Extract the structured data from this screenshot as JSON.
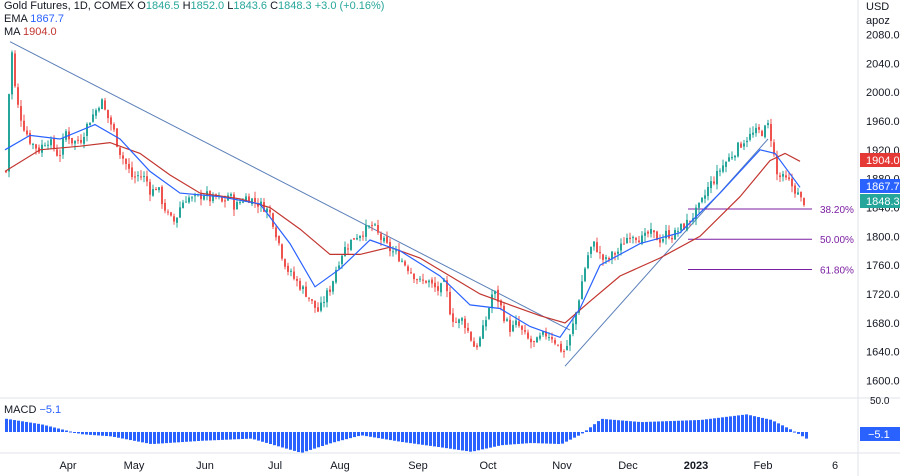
{
  "legend": {
    "title": "Gold Futures, 1D, COMEX",
    "o_label": "O",
    "o": "1846.5",
    "h_label": "H",
    "h": "1852.0",
    "l_label": "L",
    "l": "1843.6",
    "c_label": "C",
    "c": "1848.3",
    "change": "+3.0 (+0.16%)",
    "ema_label": "EMA",
    "ema_value": "1867.7",
    "ma_label": "MA",
    "ma_value": "1904.0"
  },
  "axis_unit": [
    "USD",
    "apoz"
  ],
  "macd": {
    "label": "MACD",
    "value": "−5.1",
    "tag": "−5.1",
    "axis_top": "50.0"
  },
  "colors": {
    "up": "#26a69a",
    "down": "#ef5350",
    "ema": "#2962ff",
    "ma": "#c2352f",
    "fib": "#7b1fa2",
    "trend": "#5b7fb8",
    "macd": "#2962ff"
  },
  "chart_data": {
    "type": "candlestick",
    "ylim": [
      1580,
      2100
    ],
    "y_ticks": [
      "1600.0",
      "1640.0",
      "1680.0",
      "1720.0",
      "1760.0",
      "1800.0",
      "1840.0",
      "1880.0",
      "1920.0",
      "1960.0",
      "2000.0",
      "2040.0",
      "2080.0"
    ],
    "x_labels": [
      "Apr",
      "May",
      "Jun",
      "Jul",
      "Aug",
      "Sep",
      "Oct",
      "Nov",
      "Dec",
      "2023",
      "Feb",
      "6"
    ],
    "price_tags": [
      {
        "name": "ma",
        "text": "1904.0",
        "value": 1904.0,
        "color": "#e53935"
      },
      {
        "name": "ema",
        "text": "1867.7",
        "value": 1867.7,
        "color": "#2962ff"
      },
      {
        "name": "close",
        "text": "1848.3",
        "value": 1848.3,
        "color": "#26a69a"
      }
    ],
    "fibonacci": [
      {
        "label": "38.20%",
        "value": 1838
      },
      {
        "label": "50.00%",
        "value": 1796
      },
      {
        "label": "61.80%",
        "value": 1754
      }
    ],
    "series": [
      {
        "name": "price",
        "points": [
          [
            5,
            1890
          ],
          [
            10,
            2070
          ],
          [
            15,
            1990
          ],
          [
            22,
            1955
          ],
          [
            30,
            1930
          ],
          [
            38,
            1920
          ],
          [
            46,
            1935
          ],
          [
            52,
            1925
          ],
          [
            58,
            1910
          ],
          [
            65,
            1945
          ],
          [
            72,
            1930
          ],
          [
            80,
            1935
          ],
          [
            88,
            1960
          ],
          [
            95,
            1975
          ],
          [
            100,
            1990
          ],
          [
            105,
            1970
          ],
          [
            112,
            1950
          ],
          [
            118,
            1920
          ],
          [
            125,
            1900
          ],
          [
            132,
            1880
          ],
          [
            138,
            1885
          ],
          [
            145,
            1880
          ],
          [
            150,
            1860
          ],
          [
            156,
            1870
          ],
          [
            162,
            1845
          ],
          [
            168,
            1825
          ],
          [
            174,
            1820
          ],
          [
            180,
            1845
          ],
          [
            186,
            1855
          ],
          [
            192,
            1850
          ],
          [
            198,
            1855
          ],
          [
            204,
            1860
          ],
          [
            210,
            1850
          ],
          [
            216,
            1855
          ],
          [
            222,
            1845
          ],
          [
            228,
            1860
          ],
          [
            234,
            1840
          ],
          [
            240,
            1850
          ],
          [
            246,
            1855
          ],
          [
            252,
            1850
          ],
          [
            258,
            1845
          ],
          [
            264,
            1840
          ],
          [
            270,
            1830
          ],
          [
            276,
            1800
          ],
          [
            282,
            1770
          ],
          [
            288,
            1750
          ],
          [
            294,
            1740
          ],
          [
            300,
            1730
          ],
          [
            306,
            1720
          ],
          [
            312,
            1705
          ],
          [
            318,
            1695
          ],
          [
            324,
            1715
          ],
          [
            330,
            1730
          ],
          [
            336,
            1760
          ],
          [
            342,
            1780
          ],
          [
            348,
            1790
          ],
          [
            354,
            1800
          ],
          [
            360,
            1805
          ],
          [
            366,
            1810
          ],
          [
            372,
            1815
          ],
          [
            378,
            1800
          ],
          [
            384,
            1790
          ],
          [
            390,
            1780
          ],
          [
            396,
            1775
          ],
          [
            402,
            1765
          ],
          [
            408,
            1755
          ],
          [
            414,
            1745
          ],
          [
            420,
            1735
          ],
          [
            426,
            1740
          ],
          [
            432,
            1730
          ],
          [
            438,
            1725
          ],
          [
            444,
            1735
          ],
          [
            450,
            1690
          ],
          [
            456,
            1680
          ],
          [
            462,
            1685
          ],
          [
            468,
            1665
          ],
          [
            474,
            1645
          ],
          [
            480,
            1660
          ],
          [
            486,
            1690
          ],
          [
            492,
            1725
          ],
          [
            498,
            1710
          ],
          [
            504,
            1685
          ],
          [
            510,
            1670
          ],
          [
            516,
            1680
          ],
          [
            522,
            1665
          ],
          [
            528,
            1655
          ],
          [
            534,
            1650
          ],
          [
            540,
            1660
          ],
          [
            546,
            1665
          ],
          [
            552,
            1660
          ],
          [
            558,
            1645
          ],
          [
            564,
            1640
          ],
          [
            570,
            1665
          ],
          [
            576,
            1700
          ],
          [
            582,
            1745
          ],
          [
            588,
            1780
          ],
          [
            594,
            1790
          ],
          [
            600,
            1770
          ],
          [
            606,
            1765
          ],
          [
            612,
            1775
          ],
          [
            618,
            1780
          ],
          [
            624,
            1795
          ],
          [
            630,
            1805
          ],
          [
            636,
            1800
          ],
          [
            642,
            1795
          ],
          [
            648,
            1805
          ],
          [
            654,
            1800
          ],
          [
            660,
            1795
          ],
          [
            666,
            1805
          ],
          [
            672,
            1800
          ],
          [
            678,
            1810
          ],
          [
            684,
            1815
          ],
          [
            690,
            1825
          ],
          [
            696,
            1835
          ],
          [
            702,
            1850
          ],
          [
            708,
            1870
          ],
          [
            714,
            1880
          ],
          [
            720,
            1895
          ],
          [
            726,
            1905
          ],
          [
            732,
            1915
          ],
          [
            738,
            1925
          ],
          [
            744,
            1935
          ],
          [
            750,
            1940
          ],
          [
            756,
            1945
          ],
          [
            762,
            1945
          ],
          [
            768,
            1955
          ],
          [
            772,
            1920
          ],
          [
            776,
            1885
          ],
          [
            782,
            1880
          ],
          [
            788,
            1875
          ],
          [
            794,
            1865
          ],
          [
            800,
            1850
          ],
          [
            805,
            1848
          ]
        ]
      },
      {
        "name": "ema",
        "points": [
          [
            5,
            1920
          ],
          [
            30,
            1940
          ],
          [
            60,
            1935
          ],
          [
            95,
            1955
          ],
          [
            120,
            1935
          ],
          [
            150,
            1890
          ],
          [
            180,
            1860
          ],
          [
            220,
            1855
          ],
          [
            260,
            1845
          ],
          [
            290,
            1790
          ],
          [
            315,
            1730
          ],
          [
            340,
            1755
          ],
          [
            370,
            1795
          ],
          [
            400,
            1780
          ],
          [
            440,
            1745
          ],
          [
            470,
            1705
          ],
          [
            500,
            1700
          ],
          [
            530,
            1675
          ],
          [
            560,
            1660
          ],
          [
            580,
            1700
          ],
          [
            600,
            1760
          ],
          [
            640,
            1790
          ],
          [
            680,
            1805
          ],
          [
            720,
            1860
          ],
          [
            760,
            1920
          ],
          [
            775,
            1915
          ],
          [
            800,
            1868
          ]
        ]
      },
      {
        "name": "ma",
        "points": [
          [
            5,
            1890
          ],
          [
            40,
            1920
          ],
          [
            80,
            1925
          ],
          [
            110,
            1930
          ],
          [
            140,
            1915
          ],
          [
            170,
            1885
          ],
          [
            200,
            1860
          ],
          [
            240,
            1852
          ],
          [
            270,
            1840
          ],
          [
            300,
            1810
          ],
          [
            330,
            1775
          ],
          [
            360,
            1775
          ],
          [
            390,
            1785
          ],
          [
            420,
            1770
          ],
          [
            450,
            1745
          ],
          [
            480,
            1720
          ],
          [
            510,
            1705
          ],
          [
            540,
            1690
          ],
          [
            565,
            1680
          ],
          [
            590,
            1710
          ],
          [
            620,
            1745
          ],
          [
            660,
            1770
          ],
          [
            700,
            1800
          ],
          [
            740,
            1855
          ],
          [
            770,
            1905
          ],
          [
            785,
            1915
          ],
          [
            800,
            1904
          ]
        ]
      },
      {
        "name": "macd",
        "points": [
          [
            5,
            0.6
          ],
          [
            40,
            0.35
          ],
          [
            80,
            -0.1
          ],
          [
            110,
            -0.2
          ],
          [
            150,
            -0.55
          ],
          [
            200,
            -0.4
          ],
          [
            250,
            -0.3
          ],
          [
            300,
            -0.95
          ],
          [
            330,
            -0.5
          ],
          [
            360,
            -0.15
          ],
          [
            400,
            -0.45
          ],
          [
            440,
            -0.7
          ],
          [
            470,
            -0.9
          ],
          [
            500,
            -0.6
          ],
          [
            530,
            -0.5
          ],
          [
            560,
            -0.55
          ],
          [
            580,
            -0.1
          ],
          [
            600,
            0.6
          ],
          [
            640,
            0.45
          ],
          [
            700,
            0.55
          ],
          [
            745,
            0.8
          ],
          [
            770,
            0.55
          ],
          [
            790,
            0.1
          ],
          [
            805,
            -0.3
          ]
        ]
      }
    ],
    "trendlines": [
      {
        "name": "downtrend",
        "from": [
          10,
          2070
        ],
        "to": [
          570,
          1670
        ]
      },
      {
        "name": "uptrend",
        "from": [
          565,
          1620
        ],
        "to": [
          768,
          1935
        ]
      }
    ]
  }
}
